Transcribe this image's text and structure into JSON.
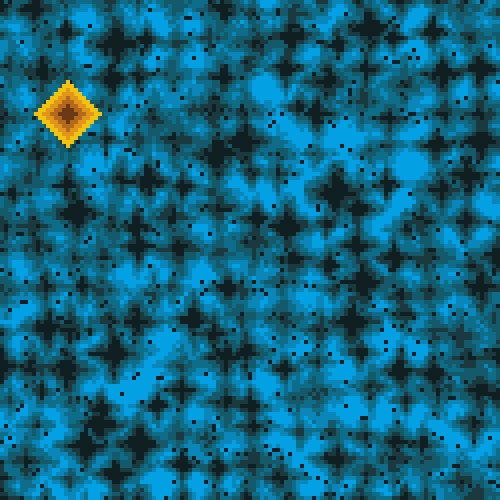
{
  "board": {
    "grid_cells": 125,
    "palette": {
      "cyan_light": "#04a0e4",
      "cyan_mid": "#0a86b8",
      "teal": "#0e6e8a",
      "teal_dark": "#145a6a",
      "shadow": "#1b3a40",
      "black": "#0f1f22"
    },
    "highlight_palette": {
      "yellow": "#f2c20c",
      "orange": "#e0961c",
      "brown": "#b4681c",
      "dark_brown": "#6a3a18"
    }
  }
}
